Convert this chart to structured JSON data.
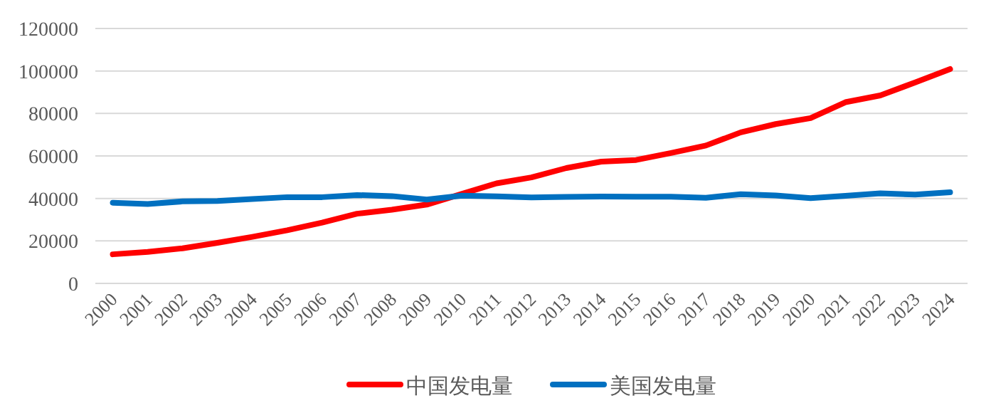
{
  "chart_data": {
    "type": "line",
    "categories": [
      "2000",
      "2001",
      "2002",
      "2003",
      "2004",
      "2005",
      "2006",
      "2007",
      "2008",
      "2009",
      "2010",
      "2011",
      "2012",
      "2013",
      "2014",
      "2015",
      "2016",
      "2017",
      "2018",
      "2019",
      "2020",
      "2021",
      "2022",
      "2023",
      "2024"
    ],
    "series": [
      {
        "name": "中国发电量",
        "color": "#ff0000",
        "values": [
          13700,
          14800,
          16500,
          19100,
          21900,
          25000,
          28600,
          32800,
          34700,
          37100,
          42100,
          47100,
          49900,
          54300,
          57300,
          58100,
          61400,
          64900,
          71100,
          75000,
          77800,
          85300,
          88500,
          94600,
          100900
        ]
      },
      {
        "name": "美国发电量",
        "color": "#0070c0",
        "values": [
          38000,
          37400,
          38600,
          38800,
          39700,
          40600,
          40600,
          41600,
          41100,
          39500,
          41300,
          41000,
          40500,
          40700,
          40900,
          40800,
          40800,
          40300,
          42000,
          41400,
          40100,
          41200,
          42400,
          41800,
          42900
        ]
      }
    ],
    "ylim": [
      0,
      120000
    ],
    "yticks": [
      0,
      20000,
      40000,
      60000,
      80000,
      100000,
      120000
    ],
    "grid": "y",
    "legend": "bottom",
    "marker": "none",
    "line_style": "solid"
  }
}
